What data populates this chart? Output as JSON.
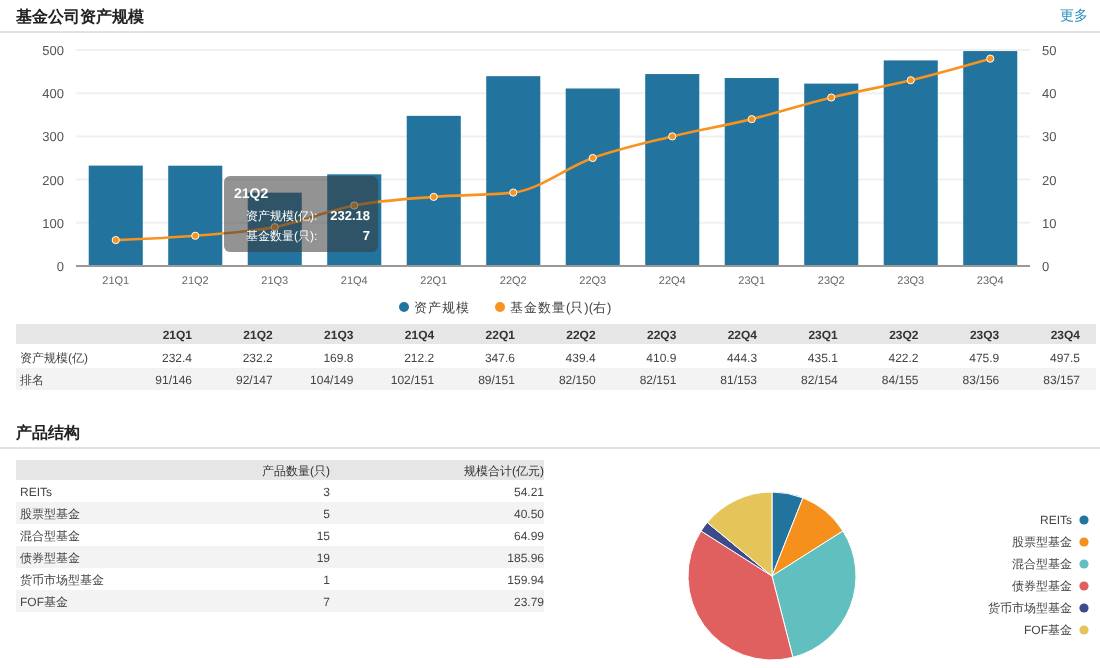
{
  "chart_data": [
    {
      "type": "bar",
      "title": "基金公司资产规模",
      "categories": [
        "21Q1",
        "21Q2",
        "21Q3",
        "21Q4",
        "22Q1",
        "22Q2",
        "22Q3",
        "22Q4",
        "23Q1",
        "23Q2",
        "23Q3",
        "23Q4"
      ],
      "series": [
        {
          "name": "资产规模",
          "type": "bar",
          "color": "#22739e",
          "values": [
            232.4,
            232.2,
            169.8,
            212.2,
            347.6,
            439.4,
            410.9,
            444.3,
            435.1,
            422.2,
            475.9,
            497.5
          ]
        },
        {
          "name": "基金数量(只)(右)",
          "type": "line",
          "axis": "y2",
          "color": "#f7931e",
          "values": [
            6,
            7,
            9,
            14,
            16,
            17,
            25,
            30,
            34,
            39,
            43,
            48
          ]
        }
      ],
      "ylim": [
        0,
        500
      ],
      "yticks": [
        0,
        100,
        200,
        300,
        400,
        500
      ],
      "y2lim": [
        0,
        50
      ],
      "y2ticks": [
        0,
        10,
        20,
        30,
        40,
        50
      ],
      "grid": "y",
      "legend": "bottom",
      "marker": "circle",
      "annotations": [
        "更多",
        "资产规模(亿)",
        "排名",
        "21Q2",
        "资产规模(亿):",
        "232.18",
        "基金数量(只):",
        "7",
        "232.4",
        "232.2",
        "169.8",
        "212.2",
        "347.6",
        "439.4",
        "410.9",
        "444.3",
        "435.1",
        "422.2",
        "475.9",
        "497.5",
        "91/146",
        "92/147",
        "104/149",
        "102/151",
        "89/151",
        "82/150",
        "82/151",
        "81/153",
        "82/154",
        "84/155",
        "83/156",
        "83/157"
      ]
    },
    {
      "type": "pie",
      "categories": [
        "REITs",
        "股票型基金",
        "混合型基金",
        "债券型基金",
        "货币市场型基金",
        "FOF基金"
      ],
      "values": [
        6,
        10,
        30,
        38,
        2,
        14
      ],
      "colors": [
        "#22739e",
        "#f5901c",
        "#61bfc0",
        "#e05f5f",
        "#3d4b8a",
        "#e5c55a"
      ],
      "legend": "right",
      "annotations": [
        "产品结构",
        "产品数量(只)",
        "规模合计(亿元)",
        "3",
        "5",
        "15",
        "19",
        "1",
        "7",
        "54.21",
        "40.50",
        "64.99",
        "185.96",
        "159.94",
        "23.79"
      ]
    }
  ]
}
